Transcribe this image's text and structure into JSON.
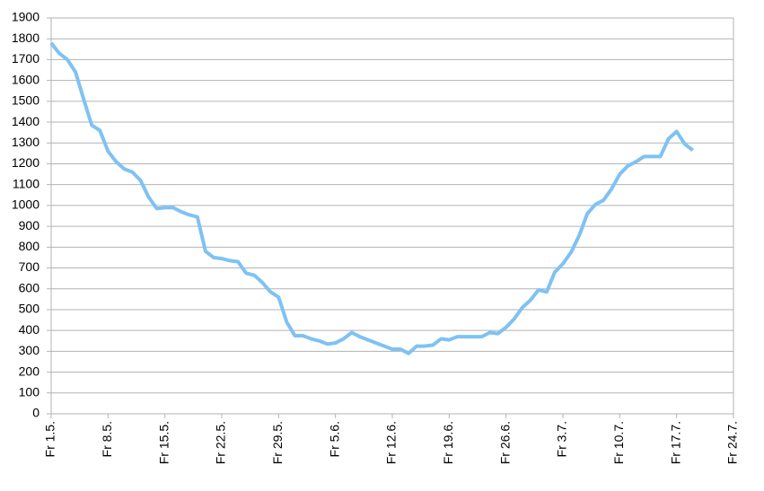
{
  "chart_data": {
    "type": "line",
    "categories": [
      "Fr 1.5.",
      null,
      null,
      null,
      null,
      null,
      null,
      "Fr 8.5.",
      null,
      null,
      null,
      null,
      null,
      null,
      "Fr 15.5.",
      null,
      null,
      null,
      null,
      null,
      null,
      "Fr 22.5.",
      null,
      null,
      null,
      null,
      null,
      null,
      "Fr 29.5.",
      null,
      null,
      null,
      null,
      null,
      null,
      "Fr 5.6.",
      null,
      null,
      null,
      null,
      null,
      null,
      "Fr 12.6.",
      null,
      null,
      null,
      null,
      null,
      null,
      "Fr 19.6.",
      null,
      null,
      null,
      null,
      null,
      null,
      "Fr 26.6.",
      null,
      null,
      null,
      null,
      null,
      null,
      "Fr 3.7.",
      null,
      null,
      null,
      null,
      null,
      null,
      "Fr 10.7.",
      null,
      null,
      null,
      null,
      null,
      null,
      "Fr 17.7.",
      null,
      null,
      null,
      null,
      null,
      null,
      "Fr 24.7."
    ],
    "values": [
      1780,
      1730,
      1700,
      1640,
      1510,
      1385,
      1360,
      1260,
      1210,
      1175,
      1160,
      1120,
      1040,
      985,
      990,
      990,
      970,
      955,
      945,
      780,
      750,
      745,
      735,
      730,
      675,
      665,
      630,
      585,
      560,
      440,
      375,
      375,
      360,
      350,
      335,
      340,
      360,
      390,
      370,
      355,
      340,
      325,
      310,
      310,
      290,
      325,
      325,
      330,
      360,
      355,
      370,
      370,
      370,
      370,
      390,
      385,
      415,
      455,
      510,
      545,
      595,
      585,
      680,
      720,
      775,
      855,
      960,
      1005,
      1025,
      1080,
      1150,
      1190,
      1210,
      1235,
      1235,
      1235,
      1320,
      1355,
      1295,
      1265,
      null,
      null,
      null,
      null,
      null
    ],
    "color": "#7fc2f3",
    "ylim": [
      0,
      1900
    ],
    "yticks": [
      0,
      100,
      200,
      300,
      400,
      500,
      600,
      700,
      800,
      900,
      1000,
      1100,
      1200,
      1300,
      1400,
      1500,
      1600,
      1700,
      1800,
      1900
    ],
    "grid": true
  }
}
